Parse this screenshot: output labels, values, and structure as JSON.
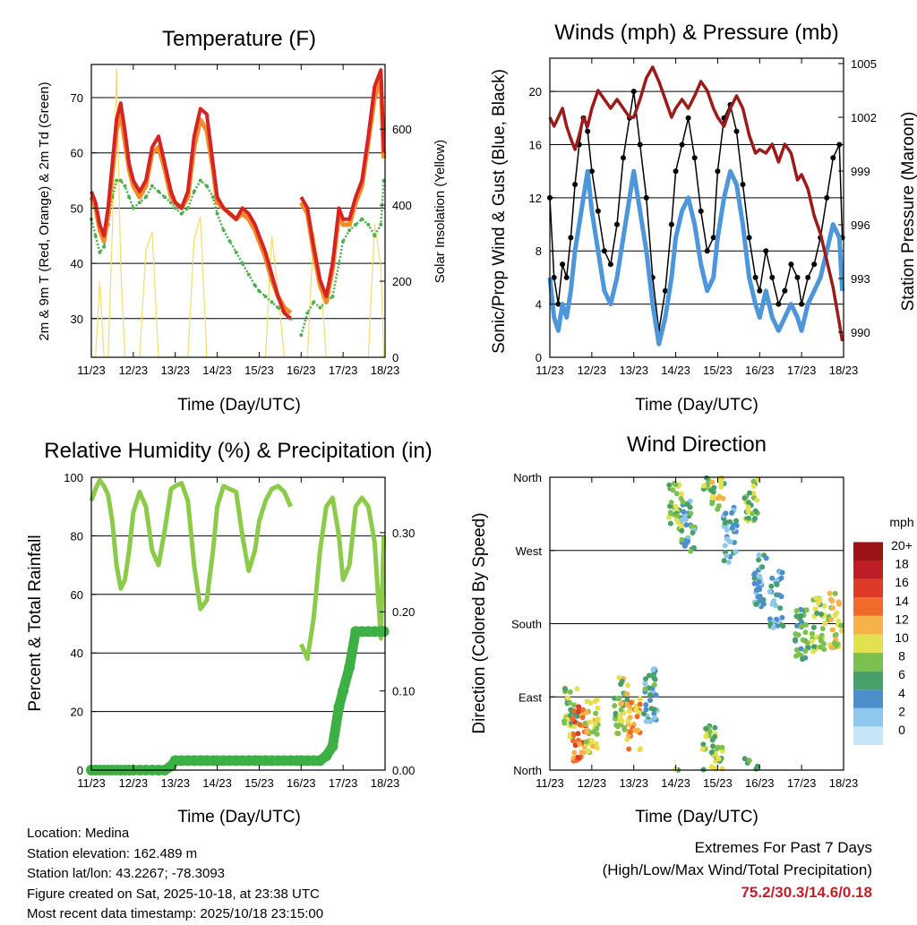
{
  "colors": {
    "temp_2m": "#d42424",
    "temp_9m": "#f28c28",
    "dewpoint": "#4caf50",
    "solar": "#f7dc6f",
    "wind_sonic": "#4d96d9",
    "gust": "#000000",
    "pressure": "#9b1a1a",
    "rh": "#8ccb4a",
    "rain": "#3cb044",
    "extremes": "#c41e2a"
  },
  "x_ticks": [
    "11/23",
    "12/23",
    "13/23",
    "14/23",
    "15/23",
    "16/23",
    "17/23",
    "18/23"
  ],
  "x_label": "Time (Day/UTC)",
  "panels": {
    "temperature": {
      "title": "Temperature (F)",
      "ylabel": "2m & 9m T (Red, Orange) & 2m Td (Green)",
      "ylabel_right": "Solar Insolation (Yellow)"
    },
    "winds": {
      "title": "Winds (mph) & Pressure (mb)",
      "ylabel": "Sonic/Prop Wind & Gust (Blue, Black)",
      "ylabel_right": "Station Pressure (Maroon)"
    },
    "humidity": {
      "title": "Relative Humidity (%) & Precipitation (in)",
      "ylabel": "Percent & Total Rainfall"
    },
    "direction": {
      "title": "Wind Direction",
      "ylabel": "Direction (Colored By Speed)",
      "legend_title": "mph"
    }
  },
  "chart_data": [
    {
      "type": "line",
      "title": "Temperature (F)",
      "xlabel": "Time (Day/UTC)",
      "ylabel": "2m & 9m T (Red, Orange) & 2m Td (Green)",
      "ylabel_right": "Solar Insolation (Yellow)",
      "x_ticks": [
        "11/23",
        "12/23",
        "13/23",
        "14/23",
        "15/23",
        "16/23",
        "17/23",
        "18/23"
      ],
      "ylim": [
        23,
        76
      ],
      "yticks": [
        30,
        40,
        50,
        60,
        70
      ],
      "ylim_right": [
        0,
        770
      ],
      "yticks_right": [
        0,
        200,
        400,
        600
      ],
      "x": [
        0,
        0.1,
        0.2,
        0.3,
        0.4,
        0.5,
        0.6,
        0.7,
        0.8,
        0.9,
        1.0,
        1.15,
        1.3,
        1.45,
        1.6,
        1.75,
        1.9,
        2.0,
        2.15,
        2.3,
        2.45,
        2.6,
        2.75,
        2.9,
        3.0,
        3.15,
        3.3,
        3.45,
        3.6,
        3.75,
        3.9,
        4.0,
        4.15,
        4.3,
        4.45,
        4.6,
        4.75,
        4.9,
        5.0,
        5.15,
        5.3,
        5.45,
        5.6,
        5.75,
        5.9,
        6.0,
        6.15,
        6.3,
        6.45,
        6.6,
        6.75,
        6.9,
        6.97
      ],
      "series": [
        {
          "name": "2m T",
          "values": [
            53,
            51,
            47,
            45,
            50,
            58,
            66,
            69,
            64,
            58,
            55,
            53,
            55,
            61,
            63,
            58,
            53,
            51,
            50,
            53,
            63,
            68,
            67,
            58,
            52,
            50,
            49,
            48,
            50,
            49,
            47,
            45,
            42,
            38,
            34,
            31,
            30,
            null,
            52,
            50,
            43,
            37,
            34,
            40,
            50,
            48,
            48,
            52,
            55,
            63,
            72,
            75,
            60
          ]
        },
        {
          "name": "9m T",
          "values": [
            52,
            50,
            46,
            44,
            49,
            56,
            64,
            67,
            62,
            57,
            54,
            52,
            54,
            60,
            61,
            57,
            52,
            51,
            50,
            52,
            61,
            66,
            64,
            57,
            51,
            50,
            49,
            48,
            49,
            48,
            46,
            44,
            41,
            37,
            34,
            32,
            31,
            null,
            51,
            49,
            42,
            36,
            33,
            39,
            49,
            47,
            47,
            51,
            54,
            62,
            70,
            73,
            59
          ]
        },
        {
          "name": "2m Td",
          "values": [
            48,
            45,
            42,
            43,
            47,
            52,
            55,
            55,
            54,
            52,
            50,
            51,
            52,
            54,
            53,
            52,
            51,
            50,
            49,
            50,
            53,
            55,
            54,
            52,
            49,
            46,
            44,
            42,
            40,
            38,
            36,
            35,
            34,
            33,
            32,
            31,
            30,
            null,
            27,
            31,
            33,
            32,
            33,
            34,
            40,
            44,
            46,
            47,
            48,
            47,
            45,
            47,
            55
          ]
        },
        {
          "name": "Solar Insolation",
          "axis": "right",
          "values": [
            0,
            0,
            200,
            0,
            0,
            330,
            760,
            240,
            0,
            0,
            0,
            0,
            280,
            330,
            0,
            0,
            0,
            0,
            0,
            0,
            310,
            370,
            0,
            0,
            0,
            0,
            0,
            0,
            0,
            0,
            0,
            0,
            0,
            320,
            170,
            0,
            0,
            0,
            0,
            0,
            330,
            220,
            0,
            0,
            0,
            0,
            0,
            0,
            0,
            0,
            350,
            240,
            0
          ]
        }
      ]
    },
    {
      "type": "line",
      "title": "Winds (mph) & Pressure (mb)",
      "xlabel": "Time (Day/UTC)",
      "ylabel": "Sonic/Prop Wind & Gust (Blue, Black)",
      "ylabel_right": "Station Pressure (Maroon)",
      "x_ticks": [
        "11/23",
        "12/23",
        "13/23",
        "14/23",
        "15/23",
        "16/23",
        "17/23",
        "18/23"
      ],
      "ylim": [
        0,
        22.5
      ],
      "yticks": [
        0,
        4,
        8,
        12,
        16,
        20
      ],
      "ylim_right": [
        988.6,
        1005.3
      ],
      "yticks_right": [
        990,
        993,
        996,
        999,
        1002,
        1005
      ],
      "x": [
        0,
        0.1,
        0.2,
        0.3,
        0.4,
        0.5,
        0.6,
        0.7,
        0.8,
        0.9,
        1.0,
        1.15,
        1.3,
        1.45,
        1.6,
        1.75,
        1.9,
        2.0,
        2.15,
        2.3,
        2.45,
        2.6,
        2.75,
        2.9,
        3.0,
        3.15,
        3.3,
        3.45,
        3.6,
        3.75,
        3.9,
        4.0,
        4.15,
        4.3,
        4.45,
        4.6,
        4.75,
        4.9,
        5.0,
        5.15,
        5.3,
        5.45,
        5.6,
        5.75,
        5.9,
        6.0,
        6.15,
        6.3,
        6.45,
        6.6,
        6.75,
        6.9,
        6.97
      ],
      "series": [
        {
          "name": "Sonic/Prop Wind",
          "values": [
            6,
            3,
            2,
            4,
            3,
            5,
            8,
            10,
            12,
            14,
            11,
            8,
            5,
            4,
            6,
            9,
            12,
            14,
            11,
            8,
            4,
            1,
            3,
            6,
            9,
            11,
            12,
            10,
            7,
            5,
            6,
            9,
            12,
            14,
            13,
            10,
            6,
            4,
            3,
            5,
            3,
            2,
            3,
            4,
            3,
            2,
            4,
            5,
            6,
            8,
            10,
            9,
            5
          ]
        },
        {
          "name": "Gust",
          "values": [
            12,
            6,
            4,
            7,
            6,
            9,
            13,
            16,
            18,
            17,
            14,
            11,
            8,
            7,
            10,
            15,
            18,
            20,
            16,
            12,
            6,
            2,
            5,
            10,
            14,
            16,
            18,
            15,
            11,
            8,
            9,
            14,
            18,
            19,
            17,
            13,
            9,
            6,
            5,
            8,
            6,
            4,
            5,
            7,
            6,
            4,
            6,
            7,
            9,
            12,
            15,
            16,
            9
          ]
        },
        {
          "name": "Station Pressure",
          "axis": "right",
          "values": [
            1002,
            1001.5,
            1002,
            1002.5,
            1001.5,
            1000.8,
            1000.2,
            1001,
            1002,
            1001.5,
            1002.5,
            1003.5,
            1003,
            1002.5,
            1003,
            1002.5,
            1002,
            1002,
            1003,
            1004.2,
            1004.8,
            1004,
            1003,
            1002,
            1002.5,
            1003,
            1002.5,
            1003.2,
            1004,
            1003.5,
            1002.5,
            1002,
            1001.5,
            1002.5,
            1003.2,
            1002.5,
            1001,
            1000,
            1000.2,
            1000,
            1000.5,
            999.5,
            1000.5,
            1000,
            998.5,
            998.8,
            998,
            996.5,
            995.5,
            994,
            992.5,
            990.5,
            989.5
          ]
        }
      ]
    },
    {
      "type": "line",
      "title": "Relative Humidity (%) & Precipitation (in)",
      "xlabel": "Time (Day/UTC)",
      "ylabel": "Percent & Total Rainfall",
      "x_ticks": [
        "11/23",
        "12/23",
        "13/23",
        "14/23",
        "15/23",
        "16/23",
        "17/23",
        "18/23"
      ],
      "ylim": [
        0,
        100
      ],
      "yticks": [
        0,
        20,
        40,
        60,
        80,
        100
      ],
      "ylim_right": [
        0,
        0.37
      ],
      "yticks_right": [
        0,
        0.1,
        0.2,
        0.3
      ],
      "yticklabels_right": [
        "0.00",
        "0.10",
        "0.20",
        "0.30"
      ],
      "x": [
        0,
        0.1,
        0.2,
        0.3,
        0.4,
        0.5,
        0.6,
        0.7,
        0.8,
        0.9,
        1.0,
        1.15,
        1.3,
        1.45,
        1.6,
        1.75,
        1.9,
        2.0,
        2.15,
        2.3,
        2.45,
        2.6,
        2.75,
        2.9,
        3.0,
        3.15,
        3.3,
        3.45,
        3.6,
        3.75,
        3.9,
        4.0,
        4.15,
        4.3,
        4.45,
        4.6,
        4.75,
        4.9,
        5.0,
        5.15,
        5.3,
        5.45,
        5.6,
        5.75,
        5.9,
        6.0,
        6.15,
        6.3,
        6.45,
        6.6,
        6.75,
        6.9,
        6.97
      ],
      "series": [
        {
          "name": "Relative Humidity",
          "values": [
            92,
            96,
            99,
            97,
            94,
            85,
            70,
            62,
            65,
            75,
            88,
            95,
            90,
            75,
            70,
            82,
            96,
            97,
            98,
            92,
            70,
            55,
            58,
            75,
            90,
            97,
            96,
            95,
            80,
            68,
            75,
            85,
            92,
            96,
            97,
            95,
            90,
            null,
            43,
            38,
            52,
            75,
            90,
            93,
            80,
            65,
            70,
            90,
            93,
            90,
            78,
            45,
            80
          ]
        },
        {
          "name": "Total Rainfall",
          "axis": "right",
          "values": [
            0,
            0,
            0,
            0,
            0,
            0,
            0,
            0,
            0,
            0,
            0,
            0,
            0,
            0,
            0,
            0,
            0.005,
            0.012,
            0.012,
            0.012,
            0.012,
            0.012,
            0.012,
            0.012,
            0.012,
            0.012,
            0.012,
            0.012,
            0.012,
            0.012,
            0.012,
            0.012,
            0.012,
            0.012,
            0.012,
            0.012,
            0.012,
            0.012,
            0.012,
            0.012,
            0.012,
            0.012,
            0.018,
            0.03,
            0.08,
            0.1,
            0.13,
            0.175,
            0.175,
            0.175,
            0.175,
            0.175,
            0.175
          ]
        }
      ]
    },
    {
      "type": "scatter",
      "title": "Wind Direction",
      "xlabel": "Time (Day/UTC)",
      "ylabel": "Direction (Colored By Speed)",
      "x_ticks": [
        "11/23",
        "12/23",
        "13/23",
        "14/23",
        "15/23",
        "16/23",
        "17/23",
        "18/23"
      ],
      "ylim": [
        0,
        360
      ],
      "yticks": [
        0,
        90,
        180,
        270,
        360
      ],
      "yticklabels": [
        "North",
        "East",
        "South",
        "West",
        "North"
      ],
      "legend_title": "mph",
      "legend_labels": [
        "0",
        "2",
        "4",
        "6",
        "8",
        "10",
        "12",
        "14",
        "16",
        "18",
        "20+"
      ],
      "legend_colors": [
        "#c6e6f7",
        "#8ec8ec",
        "#4d8fcb",
        "#47a06a",
        "#7cc04f",
        "#e3e150",
        "#f7b24a",
        "#ef6b2a",
        "#dd3a2a",
        "#bb1e24",
        "#9a1416"
      ],
      "clusters": [
        {
          "x": 0.5,
          "dir": 70,
          "speed": 8
        },
        {
          "x": 0.7,
          "dir": 45,
          "speed": 14
        },
        {
          "x": 1.0,
          "dir": 55,
          "speed": 10
        },
        {
          "x": 1.7,
          "dir": 80,
          "speed": 9
        },
        {
          "x": 2.0,
          "dir": 60,
          "speed": 12
        },
        {
          "x": 2.4,
          "dir": 90,
          "speed": 5
        },
        {
          "x": 3.0,
          "dir": 330,
          "speed": 8
        },
        {
          "x": 3.3,
          "dir": 300,
          "speed": 5
        },
        {
          "x": 3.8,
          "dir": 20,
          "speed": 8
        },
        {
          "x": 4.0,
          "dir": 355,
          "speed": 9
        },
        {
          "x": 4.3,
          "dir": 290,
          "speed": 4
        },
        {
          "x": 4.8,
          "dir": 340,
          "speed": 8
        },
        {
          "x": 5.0,
          "dir": 230,
          "speed": 4
        },
        {
          "x": 5.4,
          "dir": 210,
          "speed": 4
        },
        {
          "x": 6.0,
          "dir": 170,
          "speed": 6
        },
        {
          "x": 6.4,
          "dir": 180,
          "speed": 8
        },
        {
          "x": 6.8,
          "dir": 185,
          "speed": 10
        }
      ]
    }
  ],
  "info": {
    "location": "Location: Medina",
    "elevation": "Station elevation: 162.489 m",
    "latlon": "Station lat/lon: 43.2267; -78.3093",
    "created": "Figure created on Sat, 2025-10-18, at 23:38 UTC",
    "recent": "Most recent data timestamp: 2025/10/18 23:15:00"
  },
  "extremes": {
    "line1": "Extremes For Past 7 Days",
    "line2": "(High/Low/Max Wind/Total Precipitation)",
    "values": "75.2/30.3/14.6/0.18"
  }
}
